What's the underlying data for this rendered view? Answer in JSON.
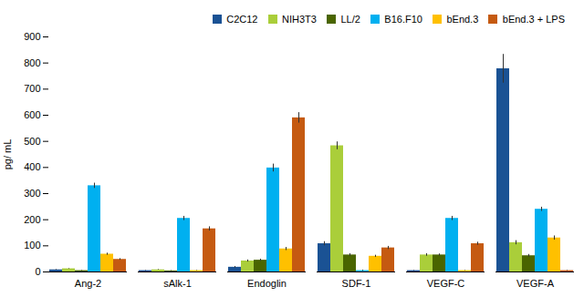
{
  "chart_data": {
    "type": "bar",
    "categories": [
      "Ang-2",
      "sAlk-1",
      "Endoglin",
      "SDF-1",
      "VEGF-C",
      "VEGF-A"
    ],
    "series": [
      {
        "name": "C2C12",
        "color": "#1a5294",
        "values": [
          8,
          5,
          18,
          108,
          5,
          778
        ],
        "errors": [
          1,
          1,
          3,
          8,
          1,
          55
        ]
      },
      {
        "name": "NIH3T3",
        "color": "#aace3a",
        "values": [
          12,
          8,
          42,
          483,
          65,
          112
        ],
        "errors": [
          1,
          1,
          4,
          15,
          5,
          8
        ]
      },
      {
        "name": "LL/2",
        "color": "#4a6500",
        "values": [
          5,
          4,
          45,
          65,
          65,
          62
        ],
        "errors": [
          1,
          1,
          4,
          5,
          4,
          5
        ]
      },
      {
        "name": "B16.F10",
        "color": "#00b0f0",
        "values": [
          330,
          205,
          398,
          5,
          205,
          240
        ],
        "errors": [
          10,
          8,
          15,
          2,
          8,
          8
        ]
      },
      {
        "name": "bEnd.3",
        "color": "#ffc000",
        "values": [
          68,
          5,
          88,
          60,
          5,
          130
        ],
        "errors": [
          4,
          1,
          6,
          4,
          1,
          8
        ]
      },
      {
        "name": "bEnd.3 + LPS",
        "color": "#c55a11",
        "values": [
          48,
          165,
          590,
          92,
          108,
          5
        ],
        "errors": [
          3,
          8,
          20,
          6,
          6,
          1
        ]
      }
    ],
    "ylabel": "pg/ mL",
    "ylim": [
      0,
      900
    ],
    "yticks": [
      0,
      100,
      200,
      300,
      400,
      500,
      600,
      700,
      800,
      900
    ],
    "grid": false,
    "legend": "upper right"
  }
}
